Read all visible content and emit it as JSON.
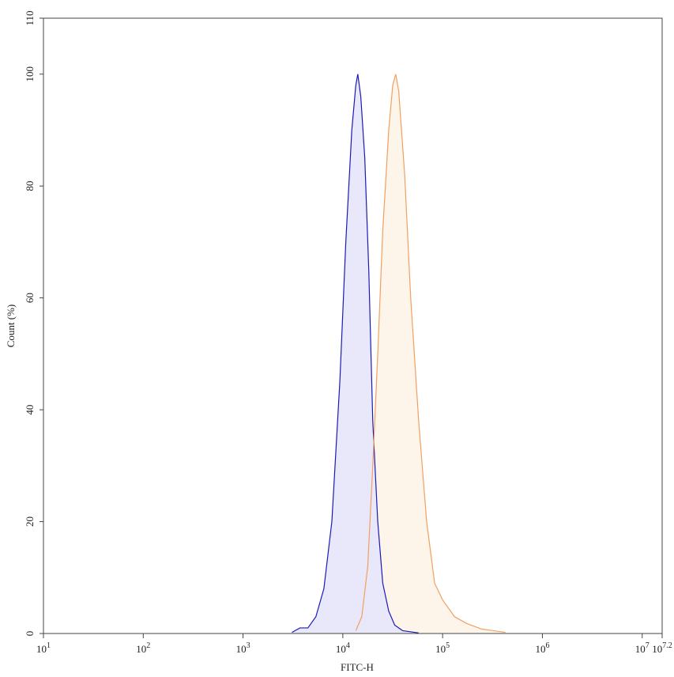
{
  "chart_data": {
    "type": "area",
    "x_label": "FITC-H",
    "y_label": "Count  (%)",
    "xscale": "log",
    "xlim": [
      10,
      15848931.92
    ],
    "xticks": [
      {
        "value": 10,
        "label": "10",
        "sup": "1"
      },
      {
        "value": 100,
        "label": "10",
        "sup": "2"
      },
      {
        "value": 1000,
        "label": "10",
        "sup": "3"
      },
      {
        "value": 10000,
        "label": "10",
        "sup": "4"
      },
      {
        "value": 100000,
        "label": "10",
        "sup": "5"
      },
      {
        "value": 1000000,
        "label": "10",
        "sup": "6"
      },
      {
        "value": 10000000,
        "label": "10",
        "sup": "7"
      },
      {
        "value": 15848931.92,
        "label": "10",
        "sup": "7.2"
      }
    ],
    "ylim": [
      0,
      110
    ],
    "yticks": [
      0,
      20,
      40,
      60,
      80,
      100,
      110
    ],
    "series": [
      {
        "color": "#1a1ab8",
        "fill": "#e8e8fa",
        "x": [
          3090,
          3715,
          4467,
          5370,
          6457,
          7762,
          9333,
          10715,
          12303,
          13490,
          14125,
          15136,
          16596,
          18197,
          19953,
          22387,
          25119,
          28840,
          33113,
          39811,
          57544
        ],
        "values": [
          0.2,
          1,
          1,
          3,
          8,
          20,
          45,
          70,
          90,
          98,
          100,
          96,
          85,
          65,
          38,
          20,
          9,
          4,
          1.5,
          0.5,
          0.1
        ]
      },
      {
        "color": "#f0a060",
        "fill": "#fdf4ea",
        "x": [
          13490,
          15488,
          17783,
          19953,
          22387,
          25119,
          28840,
          31623,
          33884,
          36308,
          41687,
          47863,
          57544,
          69183,
          83176,
          100000,
          131826,
          173780,
          245471,
          426580
        ],
        "values": [
          0.5,
          3,
          12,
          30,
          50,
          72,
          90,
          98,
          100,
          97,
          82,
          60,
          38,
          20,
          9,
          6,
          3,
          1.8,
          0.8,
          0.2
        ]
      }
    ]
  }
}
